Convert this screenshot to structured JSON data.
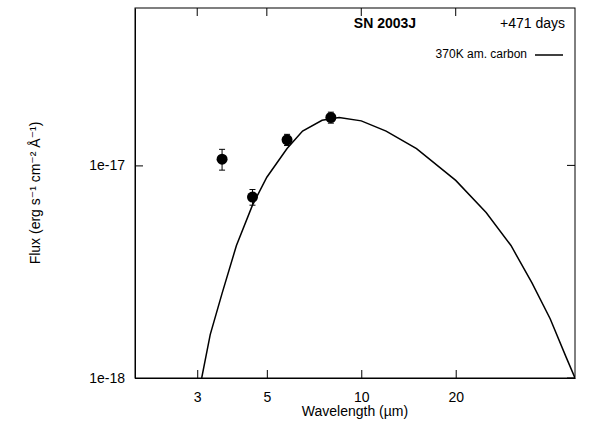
{
  "chart_data": {
    "type": "line",
    "title": "SN 2003J",
    "annotations": [
      {
        "text": "+471 days"
      }
    ],
    "x_label": "Wavelength (µm)",
    "y_label": "Flux (erg s⁻¹ cm⁻² Å⁻¹)",
    "log": true,
    "legend": "top-right",
    "xlim": [
      1.9,
      48
    ],
    "ylim": [
      1e-18,
      5.5e-17
    ],
    "xticks": [
      3,
      5,
      10,
      20
    ],
    "yticks": [
      {
        "value": 1e-18,
        "label": "1e-18"
      },
      {
        "value": 1e-17,
        "label": "1e-17"
      }
    ],
    "series": [
      {
        "name": "370K am. carbon",
        "type": "line",
        "color": "#000000",
        "line_style": "solid",
        "x": [
          3.1,
          3.3,
          3.6,
          4.0,
          4.5,
          5.0,
          5.8,
          6.5,
          7.5,
          8.5,
          10,
          12,
          15,
          20,
          25,
          30,
          35,
          40,
          45,
          48
        ],
        "values": [
          1e-18,
          1.6e-18,
          2.5e-18,
          4.2e-18,
          6.5e-18,
          8.8e-18,
          1.2e-17,
          1.45e-17,
          1.63e-17,
          1.68e-17,
          1.62e-17,
          1.45e-17,
          1.2e-17,
          8.5e-18,
          6e-18,
          4.2e-18,
          2.8e-18,
          1.9e-18,
          1.25e-18,
          1e-18
        ]
      },
      {
        "type": "scatter",
        "color": "#000000",
        "marker": "circle",
        "x": [
          3.6,
          4.5,
          5.8,
          8.0
        ],
        "values": [
          1.07e-17,
          7.1e-18,
          1.32e-17,
          1.68e-17
        ],
        "errors": [
          1.2e-18,
          6e-19,
          8e-19,
          1e-18
        ]
      }
    ]
  }
}
